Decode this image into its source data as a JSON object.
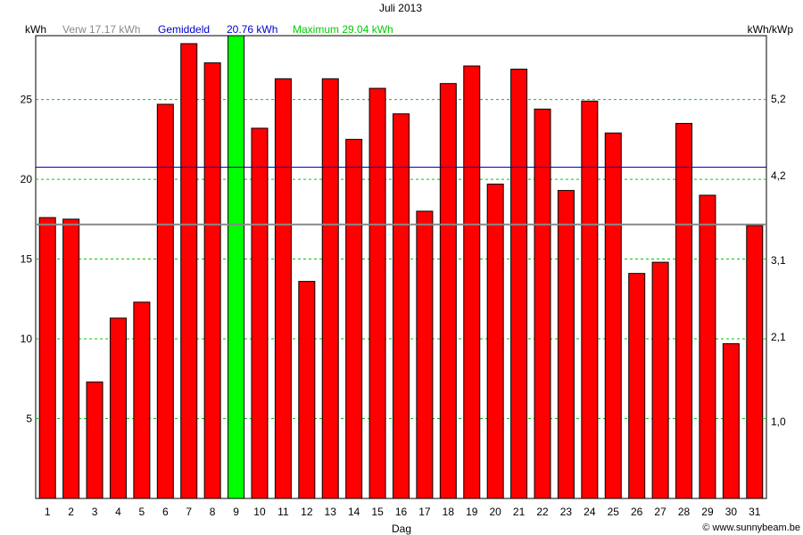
{
  "chart_data": {
    "type": "bar",
    "title": "Juli 2013",
    "xlabel": "Dag",
    "ylabel_left": "kWh",
    "ylabel_right": "kWh/kWp",
    "legend": {
      "verw_label": "Verw 17.17 kWh",
      "avg_label": "Gemiddeld",
      "avg_value": "20.76 kWh",
      "max_label": "Maximum 29.04 kWh"
    },
    "categories": [
      "1",
      "2",
      "3",
      "4",
      "5",
      "6",
      "7",
      "8",
      "9",
      "10",
      "11",
      "12",
      "13",
      "14",
      "15",
      "16",
      "17",
      "18",
      "19",
      "20",
      "21",
      "22",
      "23",
      "24",
      "25",
      "26",
      "27",
      "28",
      "29",
      "30",
      "31"
    ],
    "values": [
      17.6,
      17.5,
      7.3,
      11.3,
      12.3,
      24.7,
      28.5,
      27.3,
      29.04,
      23.2,
      26.3,
      13.6,
      26.3,
      22.5,
      25.7,
      24.1,
      18.0,
      26.0,
      27.1,
      19.7,
      26.9,
      24.4,
      19.3,
      24.9,
      22.9,
      14.1,
      14.8,
      23.5,
      19.0,
      9.7,
      17.1
    ],
    "highlight_index": 8,
    "ylim": [
      0,
      29
    ],
    "y_ticks": [
      5,
      10,
      15,
      20,
      25
    ],
    "y_tick_labels": [
      "5",
      "10",
      "15",
      "20",
      "25"
    ],
    "right_ticks": [
      1.0,
      2.1,
      3.1,
      4.2,
      5.2
    ],
    "right_tick_labels": [
      "1,0",
      "2,1",
      "3,1",
      "4,2",
      "5,2"
    ],
    "right_scale_per_kwh": 0.2077,
    "reference_lines": [
      {
        "name": "Verw",
        "value": 17.17
      },
      {
        "name": "Gemiddeld",
        "value": 20.76
      }
    ],
    "grid": "horizontal dashed",
    "colors": {
      "bar": "#ff0000",
      "bar_highlight": "#00ff00",
      "bar_border": "#000000",
      "grid": "#00cc00",
      "avg_line": "#0000cc",
      "verw_line": "#888888",
      "verw_text": "#888888",
      "avg_text": "#0000cc",
      "max_text": "#00cc00"
    }
  },
  "footer": {
    "copyright": "© www.sunnybeam.be"
  }
}
